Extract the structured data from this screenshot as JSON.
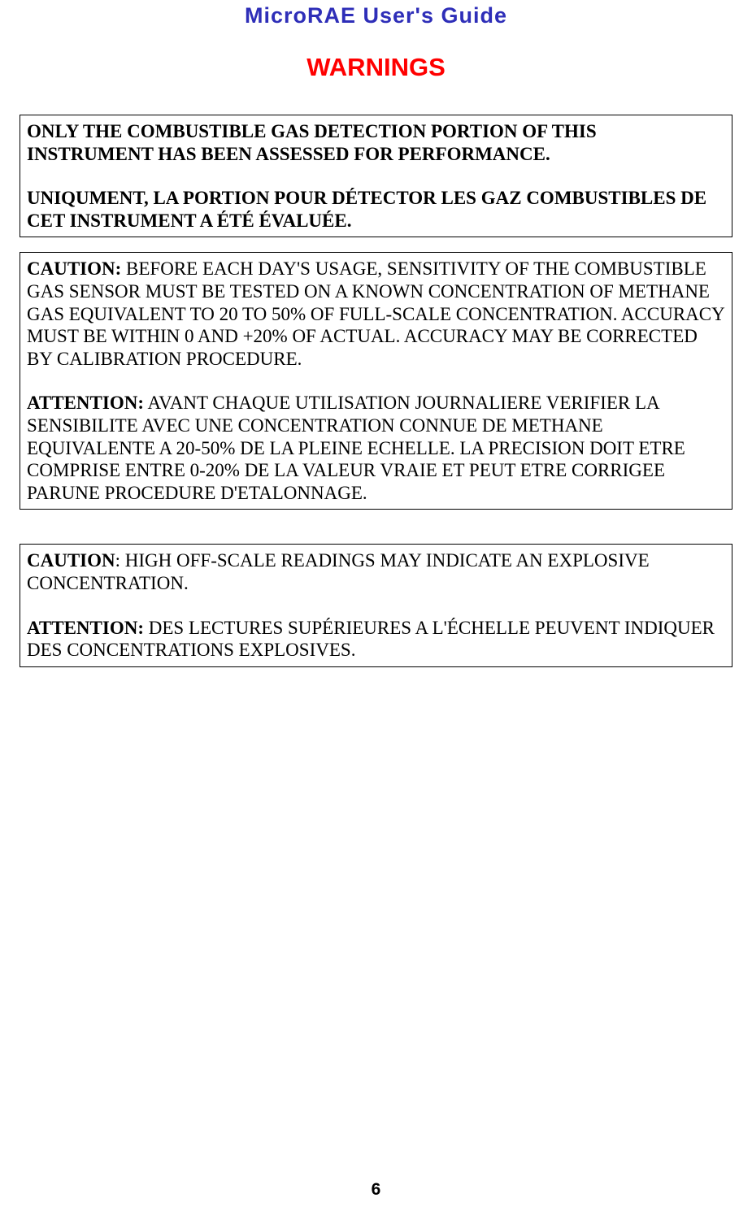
{
  "header": {
    "title": "MicroRAE User's Guide",
    "title_color": "#2e2eb8",
    "title_fontsize": 27
  },
  "warnings_title": {
    "text": "WARNINGS",
    "color": "#ff0000",
    "fontsize": 31
  },
  "boxes": [
    {
      "paragraphs": [
        {
          "bold": true,
          "text": "ONLY THE COMBUSTIBLE GAS DETECTION PORTION OF THIS INSTRUMENT HAS BEEN ASSESSED FOR PERFORMANCE."
        },
        {
          "bold": true,
          "text": "UNIQUMENT, LA PORTION POUR DÉTECTOR LES GAZ COMBUSTIBLES DE CET INSTRUMENT A ÉTÉ ÉVALUÉE."
        }
      ]
    },
    {
      "paragraphs": [
        {
          "label": "CAUTION:",
          "text": "  BEFORE EACH DAY'S USAGE, SENSITIVITY OF THE COMBUSTIBLE GAS SENSOR MUST BE TESTED ON A KNOWN CONCENTRATION OF METHANE GAS EQUIVALENT TO 20 TO 50% OF FULL-SCALE CONCENTRATION.  ACCURACY MUST BE WITHIN 0 AND +20% OF ACTUAL.  ACCURACY MAY BE CORRECTED BY CALIBRATION PROCEDURE."
        },
        {
          "label": "ATTENTION:",
          "text": "  AVANT CHAQUE UTILISATION JOURNALIERE VERIFIER LA SENSIBILITE AVEC UNE CONCENTRATION CONNUE DE METHANE EQUIVALENTE A 20-50% DE LA PLEINE ECHELLE.  LA PRECISION DOIT ETRE COMPRISE ENTRE 0-20% DE LA VALEUR VRAIE ET PEUT ETRE CORRIGEE PARUNE PROCEDURE D'ETALONNAGE."
        }
      ]
    },
    {
      "paragraphs": [
        {
          "label": "CAUTION",
          "text": ": HIGH OFF-SCALE READINGS MAY INDICATE AN EXPLOSIVE CONCENTRATION."
        },
        {
          "label": "ATTENTION:",
          "text": " DES LECTURES SUPÉRIEURES A L'ÉCHELLE PEUVENT INDIQUER DES CONCENTRATIONS EXPLOSIVES."
        }
      ]
    }
  ],
  "page_number": "6",
  "styling": {
    "body_font": "Times New Roman",
    "header_font": "Arial",
    "body_fontsize": 23,
    "box_border_color": "#000000",
    "box_border_width": 1.5,
    "background_color": "#ffffff"
  }
}
